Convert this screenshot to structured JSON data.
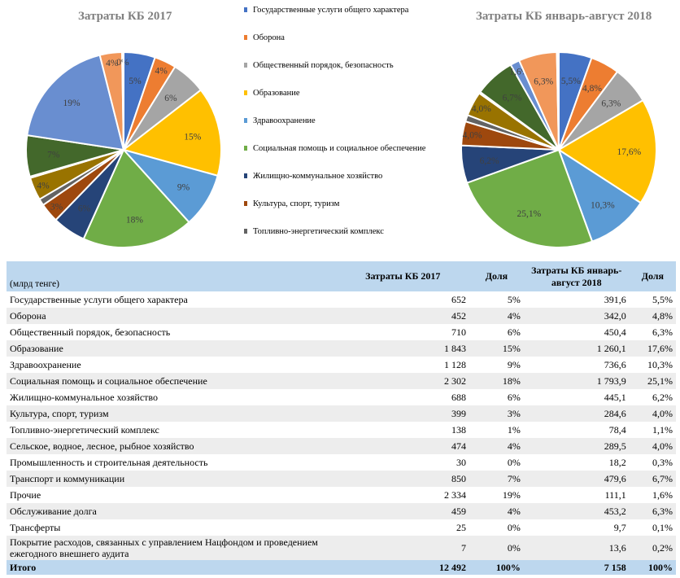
{
  "chart_data": [
    {
      "type": "pie",
      "title": "Затраты КБ 2017",
      "categories": [
        "Государственные услуги общего характера",
        "Оборона",
        "Общественный порядок, безопасность",
        "Образование",
        "Здравоохранение",
        "Социальная помощь и социальное обеспечение",
        "Жилищно-коммунальное хозяйство",
        "Культура, спорт, туризм",
        "Топливно-энергетический комплекс",
        "Сельское, водное, лесное, рыбное хозяйство",
        "Промышленность и строительная деятельность",
        "Транспорт и коммуникации",
        "Прочие",
        "Обслуживание долга",
        "Трансферты",
        "Покрытие расходов, связанных с управлением Нацфондом и проведением ежегодного внешнего аудита"
      ],
      "values": [
        652,
        452,
        710,
        1843,
        1128,
        2302,
        688,
        399,
        138,
        474,
        30,
        850,
        2334,
        459,
        25,
        7
      ],
      "labels": [
        "5%",
        "4%",
        "6%",
        "15%",
        "9%",
        "18%",
        "6%",
        "3%",
        "",
        "4%",
        "",
        "7%",
        "19%",
        "4%",
        "0%",
        ""
      ]
    },
    {
      "type": "pie",
      "title": "Затраты КБ январь-август 2018",
      "categories": [
        "Государственные услуги общего характера",
        "Оборона",
        "Общественный порядок, безопасность",
        "Образование",
        "Здравоохранение",
        "Социальная помощь и социальное обеспечение",
        "Жилищно-коммунальное хозяйство",
        "Культура, спорт, туризм",
        "Топливно-энергетический комплекс",
        "Сельское, водное, лесное, рыбное хозяйство",
        "Промышленность и строительная деятельность",
        "Транспорт и коммуникации",
        "Прочие",
        "Обслуживание долга",
        "Трансферты",
        "Покрытие расходов, связанных с управлением Нацфондом и проведением ежегодного внешнего аудита"
      ],
      "values": [
        391.6,
        342.0,
        450.4,
        1260.1,
        736.6,
        1793.9,
        445.1,
        284.6,
        78.4,
        289.5,
        18.2,
        479.6,
        111.1,
        453.2,
        9.7,
        13.6
      ],
      "labels": [
        "5,5%",
        "4,8%",
        "6,3%",
        "17,6%",
        "10,3%",
        "25,1%",
        "6,2%",
        "4,0%",
        "",
        "4,0%",
        "",
        "6,7%",
        "1,6%",
        "6,3%",
        "",
        ""
      ]
    }
  ],
  "colors": [
    "#4472c4",
    "#ed7d31",
    "#a5a5a5",
    "#ffc000",
    "#5b9bd5",
    "#70ad47",
    "#264478",
    "#9e480e",
    "#636363",
    "#997300",
    "#255e91",
    "#43682b",
    "#698ed0",
    "#f1975a",
    "#b7b7b7",
    "#ffcd33"
  ],
  "legend": [
    "Государственные услуги общего характера",
    "Оборона",
    "Общественный порядок, безопасность",
    "Образование",
    "Здравоохранение",
    "Социальная помощь и социальное обеспечение",
    "Жилищно-коммунальное хозяйство",
    "Культура, спорт, туризм",
    "Топливно-энергетический комплекс"
  ],
  "table": {
    "unit_label": "(млрд тенге)",
    "col_2017": "Затраты КБ 2017",
    "col_share1": "Доля",
    "col_2018": "Затраты КБ январь-август 2018",
    "col_share2": "Доля",
    "rows": [
      {
        "name": "Государственные услуги общего характера",
        "v2017": "652",
        "s2017": "5%",
        "v2018": "391,6",
        "s2018": "5,5%"
      },
      {
        "name": "Оборона",
        "v2017": "452",
        "s2017": "4%",
        "v2018": "342,0",
        "s2018": "4,8%"
      },
      {
        "name": "Общественный порядок, безопасность",
        "v2017": "710",
        "s2017": "6%",
        "v2018": "450,4",
        "s2018": "6,3%"
      },
      {
        "name": "Образование",
        "v2017": "1 843",
        "s2017": "15%",
        "v2018": "1 260,1",
        "s2018": "17,6%"
      },
      {
        "name": "Здравоохранение",
        "v2017": "1 128",
        "s2017": "9%",
        "v2018": "736,6",
        "s2018": "10,3%"
      },
      {
        "name": "Социальная помощь и социальное обеспечение",
        "v2017": "2 302",
        "s2017": "18%",
        "v2018": "1 793,9",
        "s2018": "25,1%"
      },
      {
        "name": "Жилищно-коммунальное хозяйство",
        "v2017": "688",
        "s2017": "6%",
        "v2018": "445,1",
        "s2018": "6,2%"
      },
      {
        "name": "Культура, спорт, туризм",
        "v2017": "399",
        "s2017": "3%",
        "v2018": "284,6",
        "s2018": "4,0%"
      },
      {
        "name": "Топливно-энергетический комплекс",
        "v2017": "138",
        "s2017": "1%",
        "v2018": "78,4",
        "s2018": "1,1%"
      },
      {
        "name": "Сельское, водное, лесное, рыбное хозяйство",
        "v2017": "474",
        "s2017": "4%",
        "v2018": "289,5",
        "s2018": "4,0%"
      },
      {
        "name": "Промышленность и строительная деятельность",
        "v2017": "30",
        "s2017": "0%",
        "v2018": "18,2",
        "s2018": "0,3%"
      },
      {
        "name": "Транспорт и коммуникации",
        "v2017": "850",
        "s2017": "7%",
        "v2018": "479,6",
        "s2018": "6,7%"
      },
      {
        "name": "Прочие",
        "v2017": "2 334",
        "s2017": "19%",
        "v2018": "111,1",
        "s2018": "1,6%"
      },
      {
        "name": "Обслуживание долга",
        "v2017": "459",
        "s2017": "4%",
        "v2018": "453,2",
        "s2018": "6,3%"
      },
      {
        "name": "Трансферты",
        "v2017": "25",
        "s2017": "0%",
        "v2018": "9,7",
        "s2018": "0,1%"
      },
      {
        "name": "Покрытие расходов, связанных с управлением Нацфондом и проведением ежегодного внешнего аудита",
        "v2017": "7",
        "s2017": "0%",
        "v2018": "13,6",
        "s2018": "0,2%"
      }
    ],
    "total": {
      "name": "Итого",
      "v2017": "12 492",
      "s2017": "100%",
      "v2018": "7 158",
      "s2018": "100%"
    }
  }
}
